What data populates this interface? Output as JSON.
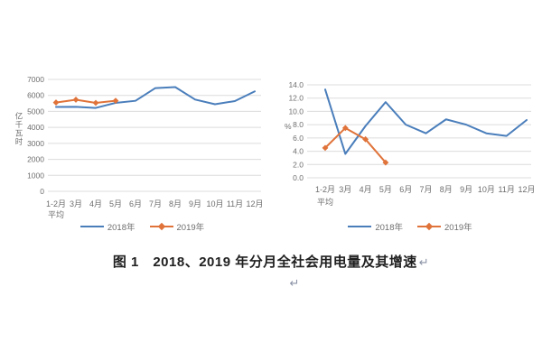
{
  "caption": {
    "text": "图 1　2018、2019 年分月全社会用电量及其增速",
    "return_mark": "↵",
    "standalone_return_mark": "↵"
  },
  "legend": {
    "series_2018_label": "2018年",
    "series_2019_label": "2019年"
  },
  "colors": {
    "s2018": "#4a7ebb",
    "s2019": "#e0733a",
    "grid": "#dcdcdc",
    "axis_text": "#6e6e6e",
    "caption_text": "#1f1f1f",
    "return_mark": "#8b93a6"
  },
  "chart_data": [
    {
      "type": "line",
      "title": "",
      "xlabel": "",
      "ylabel": "亿千瓦时",
      "categories": [
        "1-2月",
        "3月",
        "4月",
        "5月",
        "6月",
        "7月",
        "8月",
        "9月",
        "10月",
        "11月",
        "12月"
      ],
      "first_category_note": "平均",
      "ylim": [
        0,
        7000
      ],
      "ytick_step": 1000,
      "ytick_decimals": 0,
      "grid": true,
      "legend_position": "bottom",
      "series": [
        {
          "name": "2018年",
          "color_key": "s2018",
          "marker": "none",
          "values": [
            5276,
            5283,
            5217,
            5534,
            5663,
            6459,
            6521,
            5740,
            5448,
            5645,
            6250
          ]
        },
        {
          "name": "2019年",
          "color_key": "s2019",
          "marker": "diamond",
          "values": [
            5556,
            5732,
            5534,
            5665
          ]
        }
      ]
    },
    {
      "type": "line",
      "title": "",
      "xlabel": "",
      "ylabel": "%",
      "categories": [
        "1-2月",
        "3月",
        "4月",
        "5月",
        "6月",
        "7月",
        "8月",
        "9月",
        "10月",
        "11月",
        "12月"
      ],
      "first_category_note": "平均",
      "ylim": [
        0,
        14
      ],
      "ytick_step": 2,
      "ytick_decimals": 1,
      "grid": true,
      "legend_position": "bottom",
      "series": [
        {
          "name": "2018年",
          "color_key": "s2018",
          "marker": "none",
          "values": [
            13.3,
            3.6,
            7.8,
            11.4,
            8.0,
            6.7,
            8.8,
            8.0,
            6.7,
            6.3,
            8.7
          ]
        },
        {
          "name": "2019年",
          "color_key": "s2019",
          "marker": "diamond",
          "values": [
            4.5,
            7.5,
            5.8,
            2.3
          ]
        }
      ]
    }
  ]
}
